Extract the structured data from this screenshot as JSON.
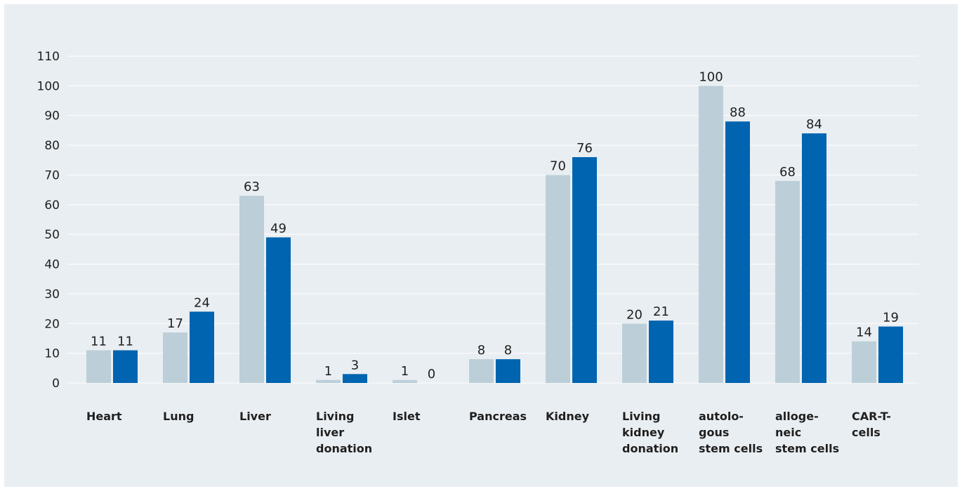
{
  "chart_data": {
    "type": "bar",
    "categories": [
      [
        "Heart"
      ],
      [
        "Lung"
      ],
      [
        "Liver"
      ],
      [
        "Living",
        "liver",
        "donation"
      ],
      [
        "Islet"
      ],
      [
        "Pancreas"
      ],
      [
        "Kidney"
      ],
      [
        "Living",
        "kidney",
        "donation"
      ],
      [
        "autolo-",
        "gous",
        "stem cells"
      ],
      [
        "alloge-",
        "neic",
        "stem cells"
      ],
      [
        "CAR-T-",
        "cells"
      ]
    ],
    "series": [
      {
        "values": [
          11,
          17,
          63,
          1,
          1,
          8,
          70,
          20,
          100,
          68,
          14
        ],
        "color": "#bccfd8"
      },
      {
        "values": [
          11,
          24,
          49,
          3,
          0,
          8,
          76,
          21,
          88,
          84,
          19
        ],
        "color": "#0064b0"
      }
    ],
    "ylim": [
      0,
      110
    ],
    "yticks": [
      0,
      10,
      20,
      30,
      40,
      50,
      60,
      70,
      80,
      90,
      100,
      110
    ],
    "grid": true,
    "title": "",
    "xlabel": "",
    "ylabel": ""
  }
}
